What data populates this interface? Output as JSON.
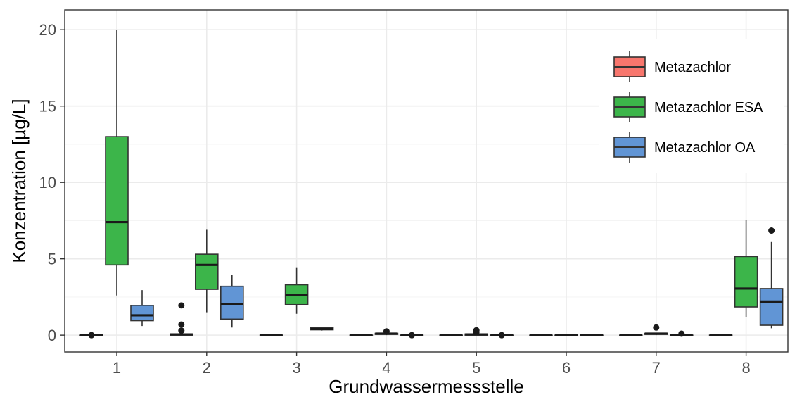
{
  "chart_data": {
    "type": "box",
    "title": "",
    "xlabel": "Grundwassermessstelle",
    "ylabel": "Konzentration [µg/L]",
    "ylim": [
      -1.1,
      21.3
    ],
    "yticks": [
      0,
      5,
      10,
      15,
      20
    ],
    "categories": [
      "1",
      "2",
      "3",
      "4",
      "5",
      "6",
      "7",
      "8"
    ],
    "grid": true,
    "legend_position": "top-right",
    "series": [
      {
        "name": "Metazachlor",
        "color": "#f8766d",
        "boxes": [
          {
            "category": "1",
            "min": 0,
            "q1": 0,
            "median": 0,
            "q3": 0,
            "max": 0,
            "outliers": [
              0
            ]
          },
          {
            "category": "2",
            "min": 0,
            "q1": 0,
            "median": 0.05,
            "q3": 0.08,
            "max": 0.1,
            "outliers": [
              0.3,
              0.7,
              1.95
            ]
          },
          {
            "category": "3",
            "min": 0,
            "q1": 0,
            "median": 0,
            "q3": 0,
            "max": 0,
            "outliers": []
          },
          {
            "category": "4",
            "min": 0,
            "q1": 0,
            "median": 0,
            "q3": 0,
            "max": 0,
            "outliers": []
          },
          {
            "category": "5",
            "min": 0,
            "q1": 0,
            "median": 0,
            "q3": 0,
            "max": 0,
            "outliers": []
          },
          {
            "category": "6",
            "min": 0,
            "q1": 0,
            "median": 0,
            "q3": 0,
            "max": 0,
            "outliers": []
          },
          {
            "category": "7",
            "min": 0,
            "q1": 0,
            "median": 0,
            "q3": 0,
            "max": 0,
            "outliers": []
          },
          {
            "category": "8",
            "min": 0,
            "q1": 0,
            "median": 0,
            "q3": 0,
            "max": 0,
            "outliers": []
          }
        ]
      },
      {
        "name": "Metazachlor ESA",
        "color": "#3cb54a",
        "boxes": [
          {
            "category": "1",
            "min": 2.6,
            "q1": 4.6,
            "median": 7.4,
            "q3": 13.0,
            "max": 20.0,
            "outliers": []
          },
          {
            "category": "2",
            "min": 1.5,
            "q1": 3.0,
            "median": 4.6,
            "q3": 5.3,
            "max": 6.9,
            "outliers": []
          },
          {
            "category": "3",
            "min": 1.4,
            "q1": 2.0,
            "median": 2.65,
            "q3": 3.3,
            "max": 4.4,
            "outliers": []
          },
          {
            "category": "4",
            "min": 0,
            "q1": 0.05,
            "median": 0.1,
            "q3": 0.12,
            "max": 0.15,
            "outliers": [
              0.25
            ]
          },
          {
            "category": "5",
            "min": 0,
            "q1": 0,
            "median": 0.05,
            "q3": 0.08,
            "max": 0.1,
            "outliers": [
              0.2,
              0.32
            ]
          },
          {
            "category": "6",
            "min": 0,
            "q1": 0,
            "median": 0,
            "q3": 0,
            "max": 0,
            "outliers": []
          },
          {
            "category": "7",
            "min": 0,
            "q1": 0.05,
            "median": 0.1,
            "q3": 0.12,
            "max": 0.15,
            "outliers": [
              0.5
            ]
          },
          {
            "category": "8",
            "min": 1.2,
            "q1": 1.85,
            "median": 3.05,
            "q3": 5.15,
            "max": 7.55,
            "outliers": []
          }
        ]
      },
      {
        "name": "Metazachlor OA",
        "color": "#6195d5",
        "boxes": [
          {
            "category": "1",
            "min": 0.6,
            "q1": 0.95,
            "median": 1.3,
            "q3": 1.95,
            "max": 2.95,
            "outliers": []
          },
          {
            "category": "2",
            "min": 0.5,
            "q1": 1.05,
            "median": 2.05,
            "q3": 3.2,
            "max": 3.95,
            "outliers": []
          },
          {
            "category": "3",
            "min": 0.3,
            "q1": 0.35,
            "median": 0.4,
            "q3": 0.5,
            "max": 0.55,
            "outliers": []
          },
          {
            "category": "4",
            "min": 0,
            "q1": 0,
            "median": 0,
            "q3": 0,
            "max": 0,
            "outliers": [
              0
            ]
          },
          {
            "category": "5",
            "min": 0,
            "q1": 0,
            "median": 0,
            "q3": 0,
            "max": 0,
            "outliers": [
              0
            ]
          },
          {
            "category": "6",
            "min": 0,
            "q1": 0,
            "median": 0,
            "q3": 0,
            "max": 0,
            "outliers": []
          },
          {
            "category": "7",
            "min": 0,
            "q1": 0,
            "median": 0,
            "q3": 0,
            "max": 0,
            "outliers": [
              0.1
            ]
          },
          {
            "category": "8",
            "min": 0.45,
            "q1": 0.65,
            "median": 2.2,
            "q3": 3.05,
            "max": 6.1,
            "outliers": [
              6.85
            ]
          }
        ]
      }
    ]
  }
}
